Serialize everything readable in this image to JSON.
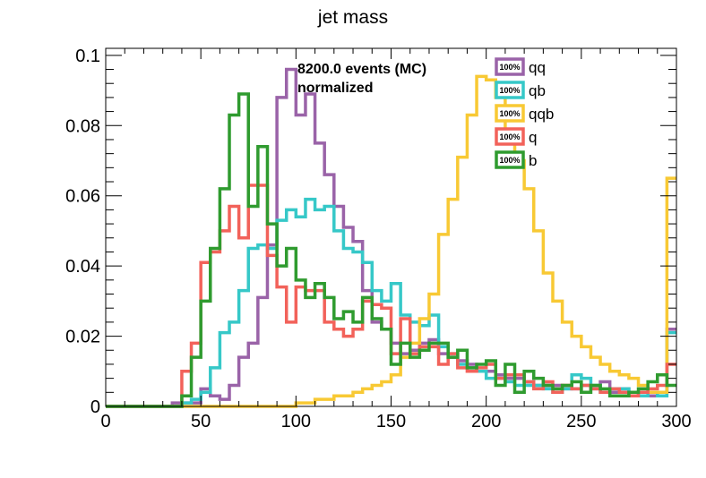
{
  "chart_data": {
    "type": "histogram",
    "title": "jet mass",
    "xlabel": "",
    "ylabel": "",
    "xlim": [
      0,
      300
    ],
    "ylim": [
      0,
      0.102
    ],
    "bin_width": 5,
    "bin_start": 0,
    "grid": false,
    "legend_placement": "top-right",
    "x_ticks": [
      {
        "value": 0,
        "label": "0"
      },
      {
        "value": 50,
        "label": "50"
      },
      {
        "value": 100,
        "label": "100"
      },
      {
        "value": 150,
        "label": "150"
      },
      {
        "value": 200,
        "label": "200"
      },
      {
        "value": 250,
        "label": "250"
      },
      {
        "value": 300,
        "label": "300"
      }
    ],
    "y_ticks": [
      {
        "value": 0,
        "label": "0"
      },
      {
        "value": 0.02,
        "label": "0.02"
      },
      {
        "value": 0.04,
        "label": "0.04"
      },
      {
        "value": 0.06,
        "label": "0.06"
      },
      {
        "value": 0.08,
        "label": "0.08"
      },
      {
        "value": 0.1,
        "label": "0.1"
      }
    ],
    "annotations": [
      "8200.0 events (MC)",
      "normalized"
    ],
    "series": [
      {
        "name": "qq",
        "badge": "100%",
        "color": "#9a63a8",
        "values": [
          0,
          0,
          0,
          0,
          0,
          0,
          0,
          0.001,
          0.001,
          0.001,
          0.005,
          0.003,
          0.002,
          0.006,
          0.014,
          0.018,
          0.031,
          0.046,
          0.088,
          0.096,
          0.083,
          0.089,
          0.075,
          0.066,
          0.057,
          0.051,
          0.047,
          0.033,
          0.024,
          0.022,
          0.018,
          0.015,
          0.016,
          0.018,
          0.019,
          0.015,
          0.014,
          0.013,
          0.012,
          0.01,
          0.01,
          0.009,
          0.008,
          0.008,
          0.007,
          0.006,
          0.006,
          0.006,
          0.005,
          0.005,
          0.006,
          0.005,
          0.007,
          0.004,
          0.005,
          0.004,
          0.003,
          0.003,
          0.004,
          0.022
        ]
      },
      {
        "name": "qb",
        "badge": "100%",
        "color": "#36c8c8",
        "values": [
          0,
          0,
          0,
          0,
          0,
          0,
          0,
          0,
          0.001,
          0.002,
          0.004,
          0.011,
          0.021,
          0.024,
          0.033,
          0.045,
          0.046,
          0.045,
          0.053,
          0.056,
          0.054,
          0.059,
          0.056,
          0.057,
          0.05,
          0.045,
          0.044,
          0.041,
          0.033,
          0.03,
          0.035,
          0.026,
          0.024,
          0.023,
          0.026,
          0.017,
          0.015,
          0.012,
          0.011,
          0.01,
          0.008,
          0.008,
          0.007,
          0.006,
          0.006,
          0.006,
          0.005,
          0.004,
          0.005,
          0.009,
          0.008,
          0.006,
          0.004,
          0.005,
          0.005,
          0.004,
          0.003,
          0.004,
          0.003,
          0.021
        ]
      },
      {
        "name": "qqb",
        "badge": "100%",
        "color": "#f8c934",
        "values": [
          0,
          0,
          0,
          0,
          0,
          0,
          0,
          0,
          0,
          0,
          0,
          0,
          0,
          0,
          0,
          0,
          0,
          0,
          0,
          0,
          0.001,
          0.001,
          0.002,
          0.002,
          0.003,
          0.003,
          0.004,
          0.005,
          0.006,
          0.007,
          0.009,
          0.014,
          0.018,
          0.025,
          0.032,
          0.049,
          0.059,
          0.071,
          0.083,
          0.094,
          0.093,
          0.088,
          0.077,
          0.07,
          0.062,
          0.05,
          0.038,
          0.03,
          0.024,
          0.02,
          0.017,
          0.014,
          0.012,
          0.01,
          0.009,
          0.008,
          0.006,
          0.004,
          0.004,
          0.065
        ]
      },
      {
        "name": "q",
        "badge": "100%",
        "color": "#f2625a",
        "values": [
          0,
          0,
          0,
          0,
          0,
          0,
          0,
          0,
          0.01,
          0.018,
          0.041,
          0.044,
          0.05,
          0.057,
          0.048,
          0.063,
          0.063,
          0.043,
          0.034,
          0.024,
          0.034,
          0.033,
          0.033,
          0.024,
          0.022,
          0.02,
          0.022,
          0.03,
          0.029,
          0.028,
          0.015,
          0.025,
          0.015,
          0.017,
          0.017,
          0.012,
          0.015,
          0.011,
          0.01,
          0.011,
          0.012,
          0.008,
          0.009,
          0.009,
          0.007,
          0.005,
          0.007,
          0.004,
          0.006,
          0.005,
          0.006,
          0.005,
          0.004,
          0.005,
          0.004,
          0.003,
          0.004,
          0.005,
          0.006,
          0.012
        ]
      },
      {
        "name": "b",
        "badge": "100%",
        "color": "#2f9b2f",
        "values": [
          0,
          0,
          0,
          0,
          0,
          0,
          0,
          0,
          0.003,
          0.014,
          0.03,
          0.045,
          0.062,
          0.083,
          0.089,
          0.057,
          0.074,
          0.052,
          0.04,
          0.045,
          0.036,
          0.031,
          0.035,
          0.031,
          0.025,
          0.027,
          0.024,
          0.031,
          0.025,
          0.022,
          0.012,
          0.018,
          0.014,
          0.016,
          0.018,
          0.018,
          0.014,
          0.016,
          0.011,
          0.012,
          0.013,
          0.006,
          0.012,
          0.004,
          0.01,
          0.008,
          0.006,
          0.005,
          0.006,
          0.007,
          0.004,
          0.006,
          0.005,
          0.003,
          0.003,
          0.004,
          0.005,
          0.007,
          0.009,
          0.006
        ]
      }
    ]
  }
}
